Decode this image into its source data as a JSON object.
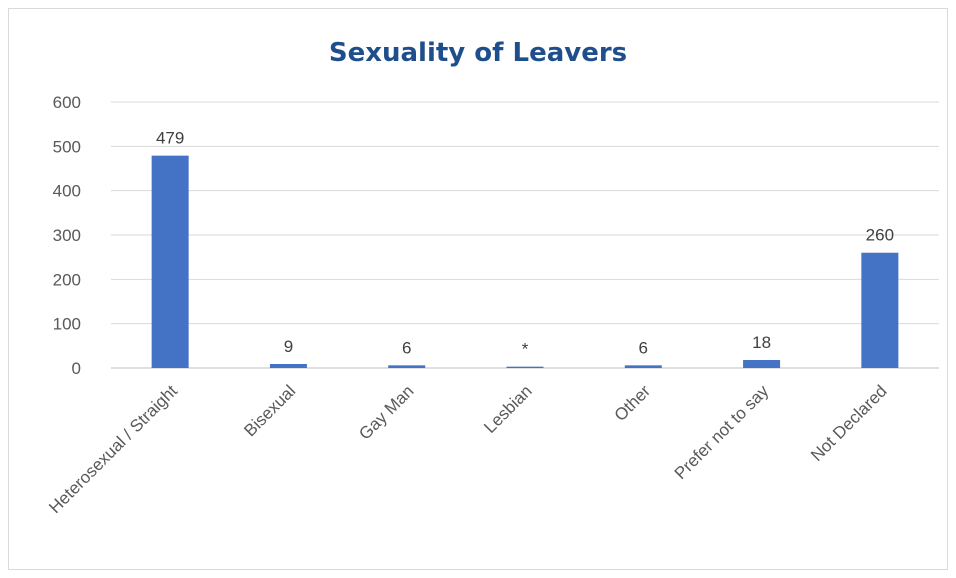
{
  "chart_data": {
    "type": "bar",
    "title": "Sexuality of Leavers",
    "xlabel": "",
    "ylabel": "",
    "ylim": [
      0,
      600
    ],
    "yticks": [
      0,
      100,
      200,
      300,
      400,
      500,
      600
    ],
    "grid": true,
    "legend": "none",
    "bar_color": "#4472c4",
    "categories": [
      "Heterosexual / Straight",
      "Bisexual",
      "Gay Man",
      "Lesbian",
      "Other",
      "Prefer not to say",
      "Not Declared"
    ],
    "values": [
      479,
      9,
      6,
      3,
      6,
      18,
      260
    ],
    "data_labels": [
      "479",
      "9",
      "6",
      "*",
      "6",
      "18",
      "260"
    ]
  }
}
